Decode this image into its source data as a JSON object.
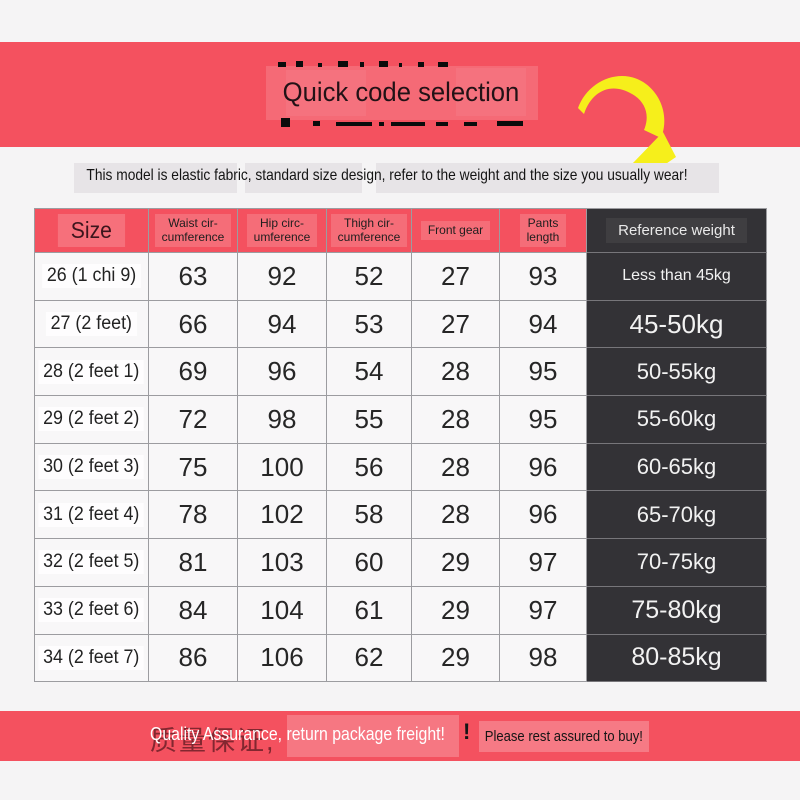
{
  "colors": {
    "accent_red": "#f4515f",
    "dark_column": "#333236",
    "cell_bg": "#f8f7f8",
    "page_bg": "#f5f4f5",
    "arrow_yellow": "#f6ef1b",
    "grid_border": "#9c9ca0"
  },
  "top_banner": {
    "title": "Quick code selection"
  },
  "info_bar": {
    "text": "This model is elastic fabric, standard size design, refer to the weight and the size you usually wear!"
  },
  "size_table": {
    "header": {
      "size": "Size",
      "waist_line1": "Waist cir-",
      "waist_line2": "cumference",
      "hip_line1": "Hip circ-",
      "hip_line2": "umference",
      "thigh_line1": "Thigh cir-",
      "thigh_line2": "cumference",
      "front_gear": "Front gear",
      "pants_line1": "Pants",
      "pants_line2": "length",
      "reference_weight": "Reference weight"
    },
    "rows": [
      {
        "size": "26 (1 chi 9)",
        "waist": "63",
        "hip": "92",
        "thigh": "52",
        "front_gear": "27",
        "pants_length": "93",
        "weight": "Less than 45kg"
      },
      {
        "size": "27 (2 feet)",
        "waist": "66",
        "hip": "94",
        "thigh": "53",
        "front_gear": "27",
        "pants_length": "94",
        "weight": "45-50kg"
      },
      {
        "size": "28 (2 feet 1)",
        "waist": "69",
        "hip": "96",
        "thigh": "54",
        "front_gear": "28",
        "pants_length": "95",
        "weight": "50-55kg"
      },
      {
        "size": "29 (2 feet 2)",
        "waist": "72",
        "hip": "98",
        "thigh": "55",
        "front_gear": "28",
        "pants_length": "95",
        "weight": "55-60kg"
      },
      {
        "size": "30 (2 feet 3)",
        "waist": "75",
        "hip": "100",
        "thigh": "56",
        "front_gear": "28",
        "pants_length": "96",
        "weight": "60-65kg"
      },
      {
        "size": "31 (2 feet 4)",
        "waist": "78",
        "hip": "102",
        "thigh": "58",
        "front_gear": "28",
        "pants_length": "96",
        "weight": "65-70kg"
      },
      {
        "size": "32 (2 feet 5)",
        "waist": "81",
        "hip": "103",
        "thigh": "60",
        "front_gear": "29",
        "pants_length": "97",
        "weight": "70-75kg"
      },
      {
        "size": "33 (2 feet 6)",
        "waist": "84",
        "hip": "104",
        "thigh": "61",
        "front_gear": "29",
        "pants_length": "97",
        "weight": "75-80kg"
      },
      {
        "size": "34 (2 feet 7)",
        "waist": "86",
        "hip": "106",
        "thigh": "62",
        "front_gear": "29",
        "pants_length": "98",
        "weight": "80-85kg"
      }
    ]
  },
  "bottom_banner": {
    "covered_text": "质量保证,",
    "white_text": "Quality Assurance, return package freight!",
    "exclamation": "!",
    "note_text": "Please rest assured to buy!"
  }
}
